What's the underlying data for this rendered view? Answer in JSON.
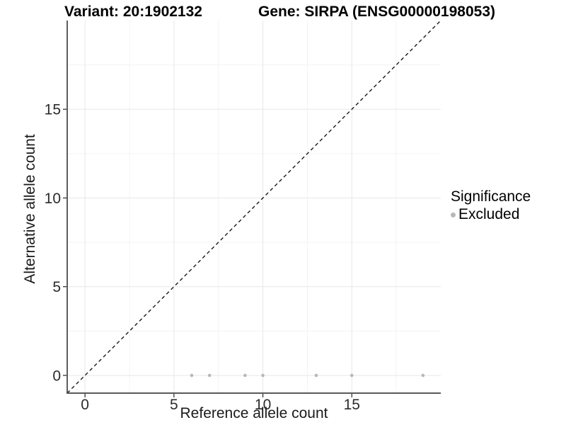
{
  "titles": {
    "variant": "Variant: 20:1902132",
    "gene": "Gene: SIRPA (ENSG00000198053)"
  },
  "legend": {
    "title": "Significance",
    "entries": [
      {
        "label": "Excluded",
        "color": "#b8b8b8"
      }
    ]
  },
  "colors": {
    "point": "#b8b8b8",
    "grid_major": "#e7e7e7",
    "grid_minor": "#f3f3f3",
    "axis_line_left": "#1a1a1a",
    "axis_line_bottom": "#5a5a5a",
    "tick_mark": "#333333",
    "tick_label": "#2b2b2b",
    "dashed_line": "#1a1a1a"
  },
  "chart_data": {
    "type": "scatter",
    "title": "Variant: 20:1902132 — Gene: SIRPA (ENSG00000198053)",
    "xlabel": "Reference allele count",
    "ylabel": "Alternative allele count",
    "xlim": [
      -1,
      20
    ],
    "ylim": [
      -1,
      20
    ],
    "x_ticks": [
      0,
      5,
      10,
      15
    ],
    "y_ticks": [
      0,
      5,
      10,
      15
    ],
    "x_minor_ticks": [
      2.5,
      7.5,
      12.5,
      17.5
    ],
    "y_minor_ticks": [
      2.5,
      7.5,
      12.5,
      17.5
    ],
    "grid": true,
    "legend_position": "right",
    "series": [
      {
        "name": "Excluded",
        "color": "#b8b8b8",
        "points": [
          [
            6,
            0
          ],
          [
            7,
            0
          ],
          [
            9,
            0
          ],
          [
            10,
            0
          ],
          [
            13,
            0
          ],
          [
            15,
            0
          ],
          [
            19,
            0
          ]
        ]
      }
    ],
    "reference_line": {
      "kind": "identity",
      "slope": 1,
      "intercept": 0,
      "style": "dashed"
    }
  }
}
